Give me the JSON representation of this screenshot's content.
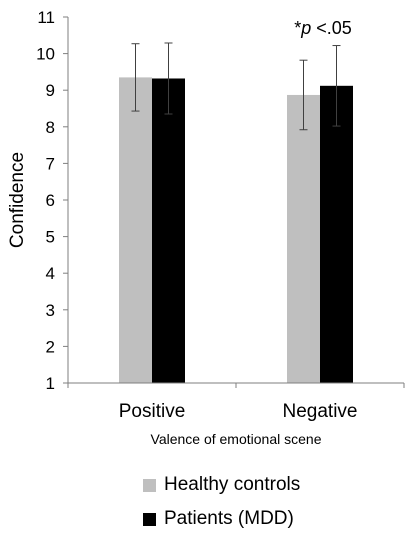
{
  "chart_data": {
    "type": "bar",
    "ylabel": "Confidence",
    "xlabel": "Valence of emotional scene",
    "ylim": [
      1,
      11
    ],
    "yticks": [
      1,
      2,
      3,
      4,
      5,
      6,
      7,
      8,
      9,
      10,
      11
    ],
    "categories": [
      "Positive",
      "Negative"
    ],
    "series": [
      {
        "name": "Healthy controls",
        "color": "#bfbfbf",
        "values": [
          9.35,
          8.87
        ],
        "error": [
          0.92,
          0.95
        ]
      },
      {
        "name": "Patients (MDD)",
        "color": "#000000",
        "values": [
          9.32,
          9.12
        ],
        "error": [
          0.97,
          1.1
        ]
      }
    ],
    "annotation": {
      "prefix": "*",
      "italic": "p",
      "suffix": " <.05",
      "category": "Negative"
    },
    "grid": false,
    "legend_position": "bottom"
  }
}
